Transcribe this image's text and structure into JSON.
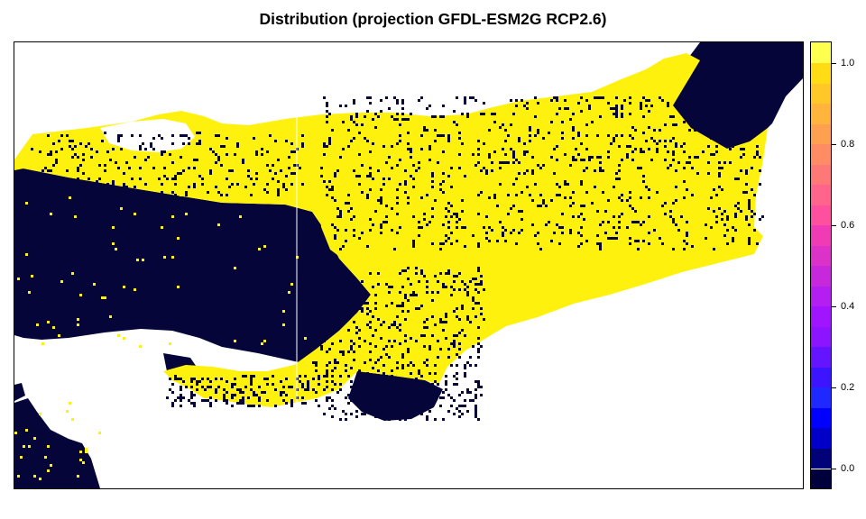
{
  "title": "Distribution (projection GFDL-ESM2G RCP2.6)",
  "colors": {
    "absent": "#05053A",
    "present": "#FFF10E",
    "background": "#FFFFFF",
    "border": "#000000"
  },
  "legend": {
    "min": -0.05,
    "max": 1.05,
    "steps": [
      {
        "from": -0.05,
        "to": 0.0,
        "color": "#00003C"
      },
      {
        "from": 0.0,
        "to": 0.05,
        "color": "#020278"
      },
      {
        "from": 0.05,
        "to": 0.1,
        "color": "#0000C8"
      },
      {
        "from": 0.1,
        "to": 0.15,
        "color": "#0000FF"
      },
      {
        "from": 0.15,
        "to": 0.2,
        "color": "#1E28FF"
      },
      {
        "from": 0.2,
        "to": 0.25,
        "color": "#3C14FF"
      },
      {
        "from": 0.25,
        "to": 0.3,
        "color": "#6414FF"
      },
      {
        "from": 0.3,
        "to": 0.35,
        "color": "#8C14FF"
      },
      {
        "from": 0.35,
        "to": 0.4,
        "color": "#A014FF"
      },
      {
        "from": 0.4,
        "to": 0.45,
        "color": "#B41EF0"
      },
      {
        "from": 0.45,
        "to": 0.5,
        "color": "#C828DC"
      },
      {
        "from": 0.5,
        "to": 0.55,
        "color": "#DC32C8"
      },
      {
        "from": 0.55,
        "to": 0.6,
        "color": "#F03CB4"
      },
      {
        "from": 0.6,
        "to": 0.65,
        "color": "#FF50A0"
      },
      {
        "from": 0.65,
        "to": 0.7,
        "color": "#FF648C"
      },
      {
        "from": 0.7,
        "to": 0.75,
        "color": "#FF7878"
      },
      {
        "from": 0.75,
        "to": 0.8,
        "color": "#FF8C64"
      },
      {
        "from": 0.8,
        "to": 0.85,
        "color": "#FFA050"
      },
      {
        "from": 0.85,
        "to": 0.9,
        "color": "#FFB43C"
      },
      {
        "from": 0.9,
        "to": 0.95,
        "color": "#FFC828"
      },
      {
        "from": 0.95,
        "to": 1.0,
        "color": "#FFDC14"
      },
      {
        "from": 1.0,
        "to": 1.05,
        "color": "#FFFF50"
      }
    ],
    "ticks": [
      {
        "value": 0.0,
        "label": "0.0"
      },
      {
        "value": 0.2,
        "label": "0.2"
      },
      {
        "value": 0.4,
        "label": "0.4"
      },
      {
        "value": 0.6,
        "label": "0.6"
      },
      {
        "value": 0.8,
        "label": "0.8"
      },
      {
        "value": 1.0,
        "label": "1.0"
      }
    ]
  }
}
